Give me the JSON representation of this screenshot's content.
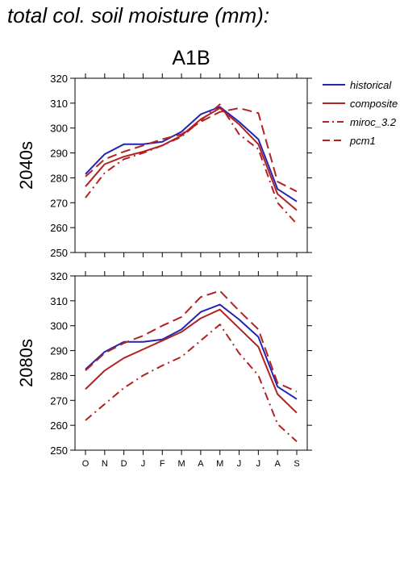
{
  "figure_title": "total col. soil moisture (mm):",
  "scenario": "A1B",
  "colors": {
    "historical": "#2424b4",
    "model": "#b22222",
    "axis": "#000000"
  },
  "chart_data": [
    {
      "type": "line",
      "panel_label": "2040s",
      "categories": [
        "O",
        "N",
        "D",
        "J",
        "F",
        "M",
        "A",
        "M",
        "J",
        "J",
        "A",
        "S"
      ],
      "ylim": [
        250,
        320
      ],
      "yticks": [
        250,
        260,
        270,
        280,
        290,
        300,
        310,
        320
      ],
      "xlabel": "",
      "ylabel": "",
      "grid": false,
      "legend_position": "right",
      "series": [
        {
          "name": "historical",
          "style": "solid",
          "color": "#2424b4",
          "values": [
            281.5,
            289.5,
            293.5,
            293.5,
            294.5,
            298.5,
            305.5,
            308.5,
            302.5,
            295.5,
            275.5,
            270.5
          ]
        },
        {
          "name": "composite",
          "style": "solid",
          "color": "#b22222",
          "values": [
            276.5,
            285.5,
            288.5,
            290.5,
            293.0,
            297.0,
            303.5,
            308.0,
            301.5,
            293.5,
            273.5,
            267.0
          ]
        },
        {
          "name": "miroc_3.2",
          "style": "dashdot",
          "color": "#b22222",
          "values": [
            272.0,
            282.0,
            287.5,
            290.0,
            293.0,
            296.5,
            303.0,
            309.5,
            297.5,
            291.5,
            270.0,
            261.5
          ]
        },
        {
          "name": "pcm1",
          "style": "dash",
          "color": "#b22222",
          "values": [
            280.5,
            287.5,
            290.5,
            293.0,
            295.5,
            297.5,
            302.5,
            306.5,
            308.0,
            306.0,
            278.5,
            274.5
          ]
        }
      ]
    },
    {
      "type": "line",
      "panel_label": "2080s",
      "categories": [
        "O",
        "N",
        "D",
        "J",
        "F",
        "M",
        "A",
        "M",
        "J",
        "J",
        "A",
        "S"
      ],
      "ylim": [
        250,
        320
      ],
      "yticks": [
        250,
        260,
        270,
        280,
        290,
        300,
        310,
        320
      ],
      "xlabel": "",
      "ylabel": "",
      "grid": false,
      "series": [
        {
          "name": "historical",
          "style": "solid",
          "color": "#2424b4",
          "values": [
            282.5,
            289.5,
            293.5,
            293.5,
            294.5,
            298.5,
            305.5,
            308.5,
            302.5,
            295.5,
            275.5,
            270.5
          ]
        },
        {
          "name": "composite",
          "style": "solid",
          "color": "#b22222",
          "values": [
            274.5,
            282.0,
            287.0,
            290.5,
            294.0,
            297.5,
            303.0,
            306.5,
            299.0,
            291.5,
            272.5,
            265.0
          ]
        },
        {
          "name": "miroc_3.2",
          "style": "dashdot",
          "color": "#b22222",
          "values": [
            262.0,
            268.5,
            275.0,
            280.0,
            284.0,
            287.5,
            294.0,
            300.5,
            289.0,
            280.0,
            260.5,
            253.5
          ]
        },
        {
          "name": "pcm1",
          "style": "dash",
          "color": "#b22222",
          "values": [
            282.0,
            289.0,
            293.0,
            296.0,
            300.0,
            303.5,
            311.5,
            314.0,
            306.0,
            298.5,
            277.0,
            273.5
          ]
        }
      ]
    }
  ]
}
